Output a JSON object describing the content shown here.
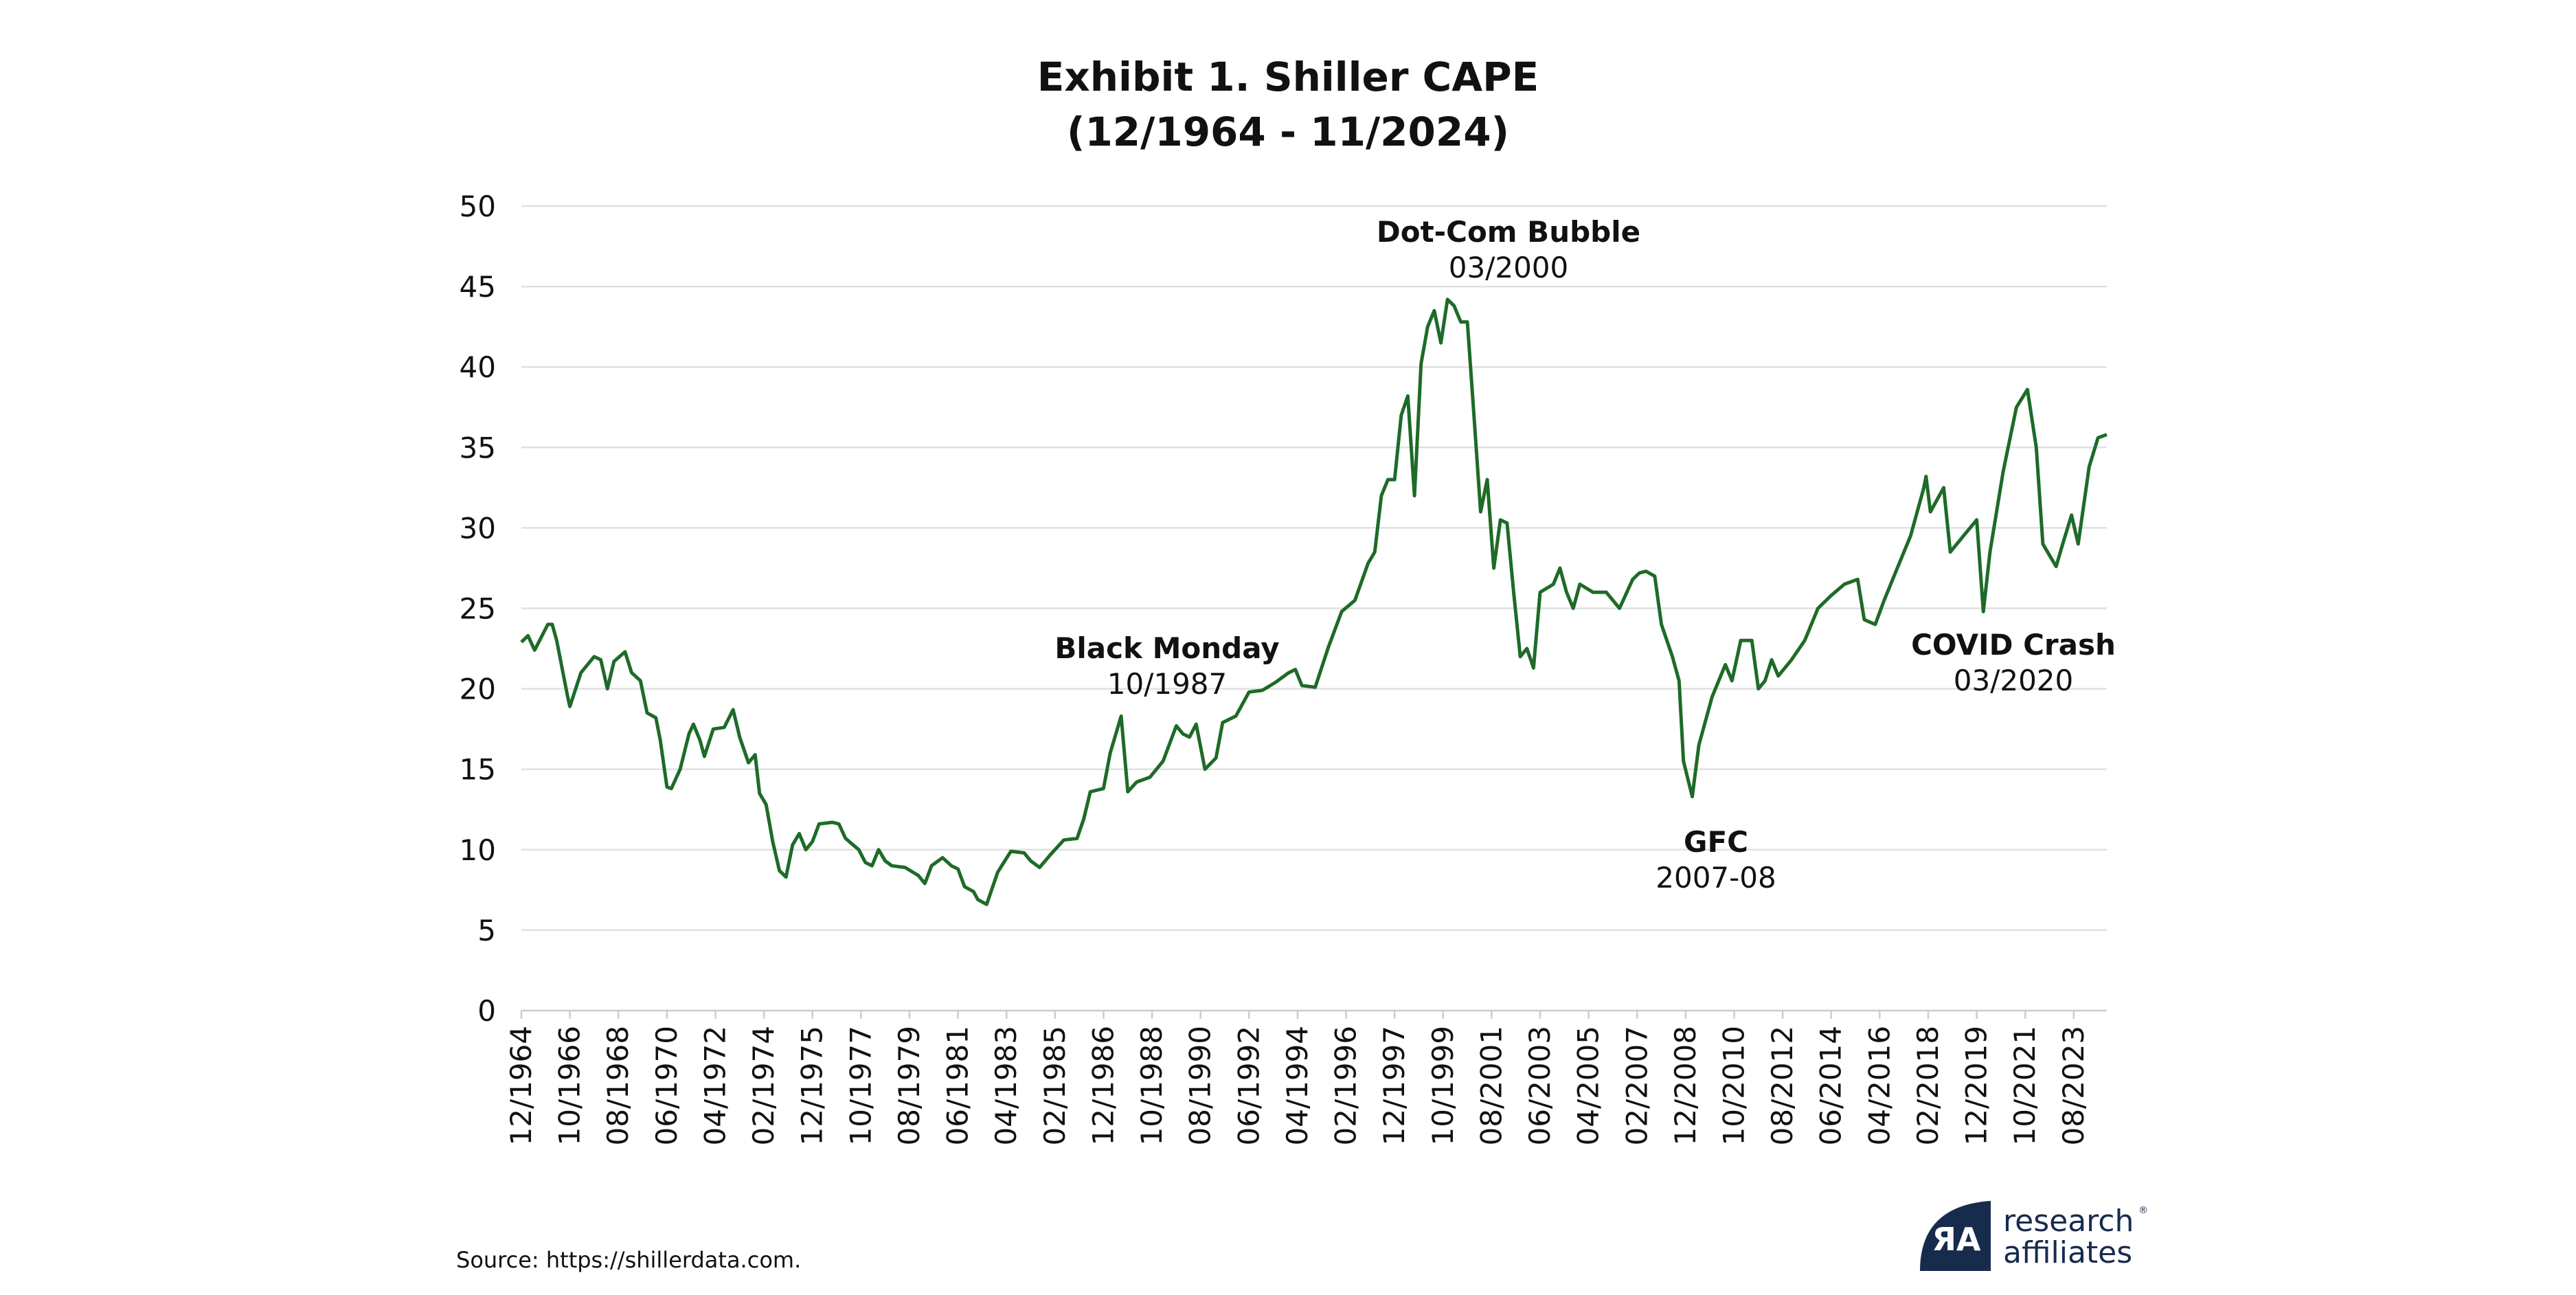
{
  "chart_data": {
    "type": "line",
    "title": "Exhibit 1. Shiller CAPE",
    "subtitle": "(12/1964 - 11/2024)",
    "xlabel": "",
    "ylabel": "",
    "ylim": [
      0,
      50
    ],
    "yticks": [
      "0",
      "5",
      "10",
      "15",
      "20",
      "25",
      "30",
      "35",
      "40",
      "45",
      "50"
    ],
    "xrange": [
      "12/1964",
      "11/2024"
    ],
    "xticks": [
      "12/1964",
      "10/1966",
      "08/1968",
      "06/1970",
      "04/1972",
      "02/1974",
      "12/1975",
      "10/1977",
      "08/1979",
      "06/1981",
      "04/1983",
      "02/1985",
      "12/1986",
      "10/1988",
      "08/1990",
      "06/1992",
      "04/1994",
      "02/1996",
      "12/1997",
      "10/1999",
      "08/2001",
      "06/2003",
      "04/2005",
      "02/2007",
      "12/2008",
      "10/2010",
      "08/2012",
      "06/2014",
      "04/2016",
      "02/2018",
      "12/2019",
      "10/2021",
      "08/2023"
    ],
    "grid": true,
    "line_color": "#1e6b27",
    "series": [
      {
        "x": [
          "12/1964",
          "03/1965",
          "06/1965",
          "12/1965",
          "02/1966",
          "04/1966",
          "09/1966",
          "10/1966",
          "03/1967",
          "09/1967",
          "12/1967",
          "03/1968",
          "06/1968",
          "11/1968",
          "02/1969",
          "06/1969",
          "09/1969",
          "01/1970",
          "03/1970",
          "06/1970",
          "08/1970",
          "12/1970",
          "04/1971",
          "06/1971",
          "09/1971",
          "11/1971",
          "03/1972",
          "08/1972",
          "12/1972",
          "03/1973",
          "07/1973",
          "10/1973",
          "12/1973",
          "03/1974",
          "06/1974",
          "09/1974",
          "12/1974",
          "03/1975",
          "06/1975",
          "09/1975",
          "12/1975",
          "03/1976",
          "09/1976",
          "12/1976",
          "03/1977",
          "09/1977",
          "12/1977",
          "03/1978",
          "06/1978",
          "09/1978",
          "12/1978",
          "06/1979",
          "12/1979",
          "03/1980",
          "06/1980",
          "11/1980",
          "03/1981",
          "06/1981",
          "09/1981",
          "01/1982",
          "03/1982",
          "07/1982",
          "12/1982",
          "06/1983",
          "12/1983",
          "03/1984",
          "07/1984",
          "12/1984",
          "06/1985",
          "12/1985",
          "03/1986",
          "06/1986",
          "12/1986",
          "03/1987",
          "08/1987",
          "11/1987",
          "03/1988",
          "09/1988",
          "03/1989",
          "09/1989",
          "12/1989",
          "03/1990",
          "06/1990",
          "10/1990",
          "03/1991",
          "06/1991",
          "12/1991",
          "06/1992",
          "12/1992",
          "06/1993",
          "12/1993",
          "03/1994",
          "06/1994",
          "12/1994",
          "06/1995",
          "12/1995",
          "06/1996",
          "12/1996",
          "03/1997",
          "06/1997",
          "09/1997",
          "12/1997",
          "03/1998",
          "06/1998",
          "09/1998",
          "12/1998",
          "03/1999",
          "06/1999",
          "09/1999",
          "12/1999",
          "03/2000",
          "06/2000",
          "09/2000",
          "12/2000",
          "03/2001",
          "06/2001",
          "09/2001",
          "12/2001",
          "03/2002",
          "06/2002",
          "09/2002",
          "12/2002",
          "03/2003",
          "06/2003",
          "12/2003",
          "03/2004",
          "06/2004",
          "09/2004",
          "12/2004",
          "06/2005",
          "12/2005",
          "06/2006",
          "12/2006",
          "03/2007",
          "06/2007",
          "10/2007",
          "01/2008",
          "06/2008",
          "09/2008",
          "11/2008",
          "03/2009",
          "06/2009",
          "12/2009",
          "03/2010",
          "06/2010",
          "09/2010",
          "01/2011",
          "06/2011",
          "09/2011",
          "12/2011",
          "03/2012",
          "06/2012",
          "12/2012",
          "06/2013",
          "12/2013",
          "06/2014",
          "12/2014",
          "06/2015",
          "09/2015",
          "02/2016",
          "06/2016",
          "12/2016",
          "06/2017",
          "12/2017",
          "01/2018",
          "03/2018",
          "09/2018",
          "12/2018",
          "06/2019",
          "12/2019",
          "03/2020",
          "06/2020",
          "12/2020",
          "06/2021",
          "11/2021",
          "03/2022",
          "06/2022",
          "09/2022",
          "12/2022",
          "03/2023",
          "07/2023",
          "10/2023",
          "03/2024",
          "07/2024",
          "11/2024"
        ],
        "y": [
          22.9,
          23.3,
          22.4,
          24.0,
          24.0,
          23.0,
          19.5,
          18.9,
          21.0,
          22.0,
          21.8,
          20.0,
          21.7,
          22.3,
          21.0,
          20.5,
          18.5,
          18.2,
          16.8,
          13.9,
          13.8,
          15.0,
          17.2,
          17.8,
          16.8,
          15.8,
          17.5,
          17.6,
          18.7,
          17.0,
          15.4,
          15.9,
          13.5,
          12.8,
          10.5,
          8.7,
          8.3,
          10.3,
          11.0,
          10.0,
          10.5,
          11.6,
          11.7,
          11.6,
          10.7,
          10.0,
          9.2,
          9.0,
          10.0,
          9.3,
          9.0,
          8.9,
          8.4,
          7.9,
          9.0,
          9.5,
          9.0,
          8.8,
          7.7,
          7.4,
          6.9,
          6.6,
          8.6,
          9.9,
          9.8,
          9.3,
          8.9,
          9.7,
          10.6,
          10.7,
          11.9,
          13.6,
          13.8,
          16.0,
          18.3,
          13.6,
          14.2,
          14.5,
          15.5,
          17.7,
          17.2,
          17.0,
          17.8,
          15.0,
          15.7,
          17.9,
          18.3,
          19.8,
          19.9,
          20.4,
          21.0,
          21.2,
          20.2,
          20.1,
          22.6,
          24.8,
          25.5,
          27.8,
          28.5,
          32.0,
          33.0,
          33.0,
          37.0,
          38.2,
          32.0,
          40.2,
          42.5,
          43.5,
          41.5,
          44.2,
          43.8,
          42.8,
          42.8,
          37.0,
          31.0,
          33.0,
          27.5,
          30.5,
          30.3,
          26.0,
          22.0,
          22.5,
          21.3,
          26.0,
          26.5,
          27.5,
          26.0,
          25.0,
          26.5,
          26.0,
          26.0,
          25.0,
          26.8,
          27.2,
          27.3,
          27.0,
          24.0,
          22.0,
          20.5,
          15.5,
          13.3,
          16.5,
          19.5,
          20.5,
          21.5,
          20.5,
          23.0,
          23.0,
          20.0,
          20.5,
          21.8,
          20.8,
          21.8,
          23.0,
          25.0,
          25.8,
          26.5,
          26.8,
          24.3,
          24.0,
          25.5,
          27.5,
          29.5,
          32.5,
          33.2,
          31.0,
          32.5,
          28.5,
          29.5,
          30.5,
          24.8,
          28.5,
          33.5,
          37.5,
          38.6,
          35.0,
          29.0,
          28.3,
          27.6,
          29.0,
          30.8,
          29.0,
          33.8,
          35.6,
          35.8
        ]
      }
    ],
    "annotations": [
      {
        "label": "Black Monday",
        "date": "10/1987",
        "value": 20
      },
      {
        "label": "Dot-Com Bubble",
        "date": "03/2000",
        "value": 45.5
      },
      {
        "label": "GFC",
        "date": "2007-08",
        "value": 11
      },
      {
        "label": "COVID Crash",
        "date": "03/2020",
        "value": 23.5
      }
    ]
  },
  "source": "Source: https://shillerdata.com.",
  "logo": {
    "line1": "research",
    "line2": "affiliates",
    "mark": "RA",
    "color": "#172b4d"
  }
}
